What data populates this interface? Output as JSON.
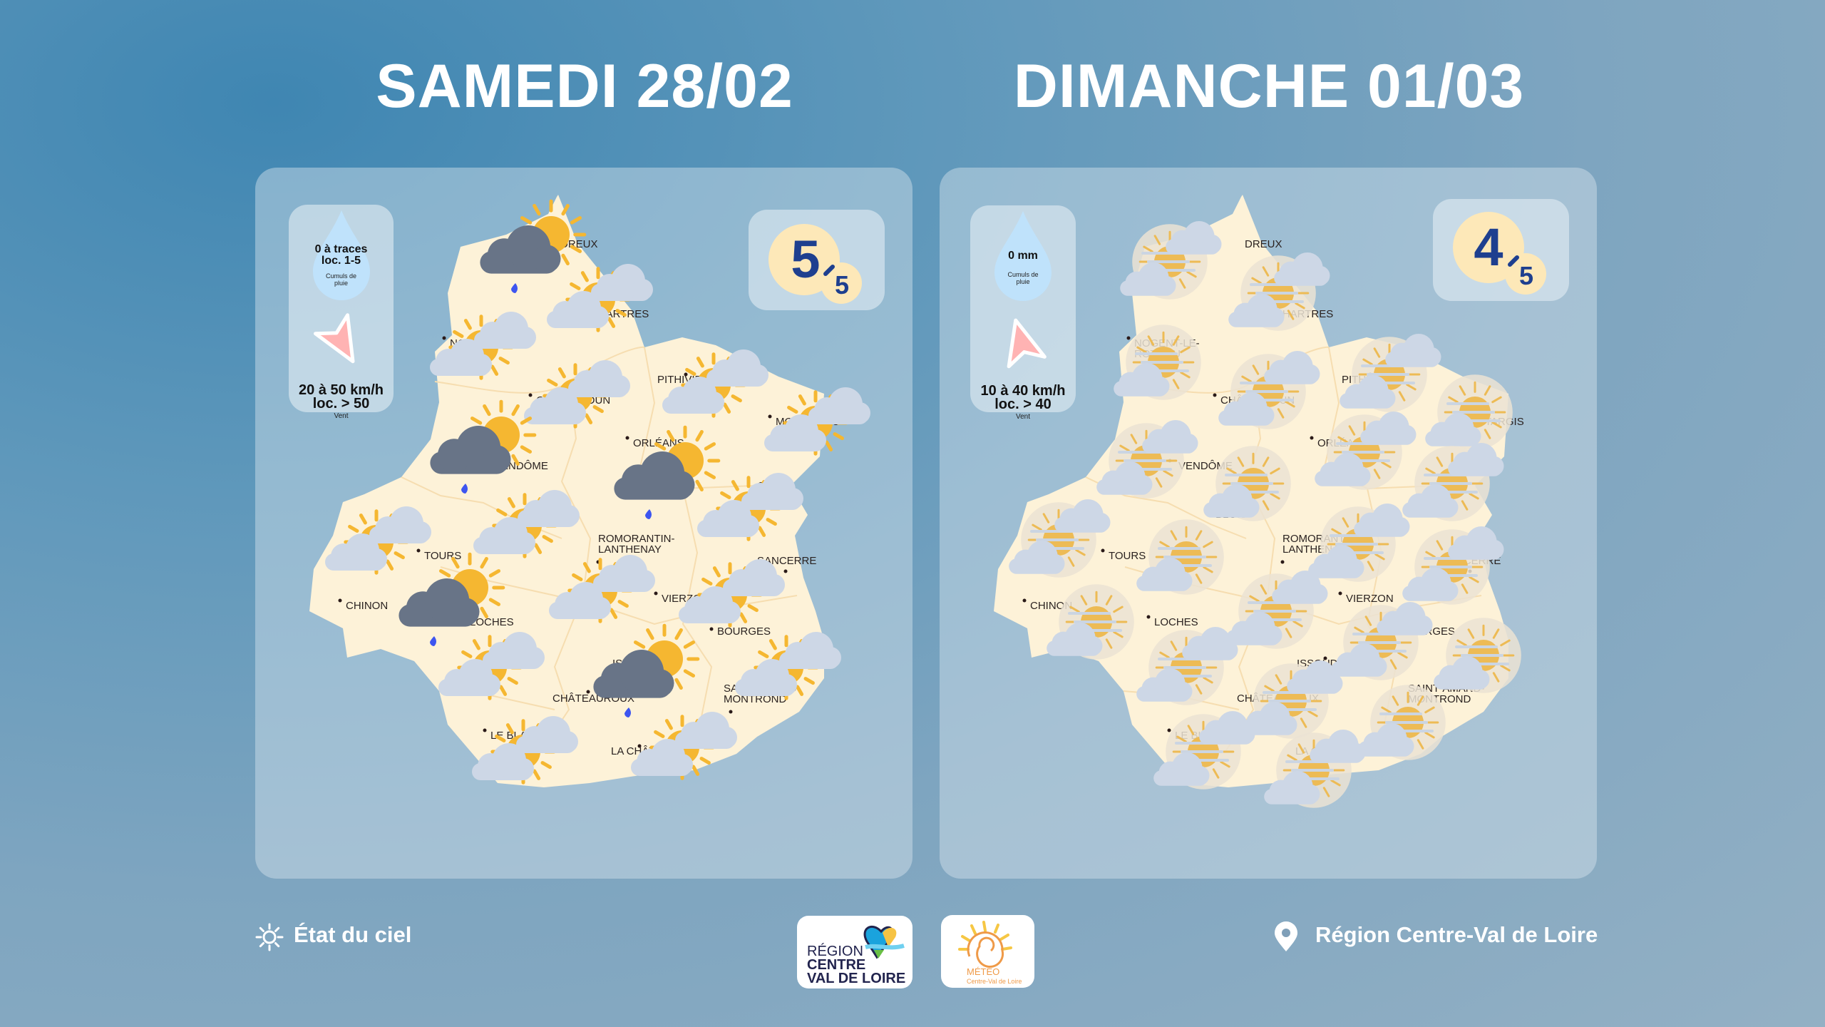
{
  "days": [
    {
      "title": "SAMEDI 28/02",
      "rain": {
        "line1": "0 à traces",
        "line2": "loc. 1-5",
        "label": "Cumuls de pluie"
      },
      "wind": {
        "line1": "20 à 50 km/h",
        "line2": "loc. > 50",
        "label": "Vent",
        "arrow_icon": "arrow-southeast-icon"
      },
      "rating": {
        "value": "5",
        "max": "5"
      },
      "sky_icons": [
        "rain",
        "partly-cloudy",
        "partly-cloudy",
        "partly-cloudy",
        "partly-cloudy",
        "partly-cloudy",
        "rain",
        "rain",
        "partly-cloudy",
        "partly-cloudy",
        "partly-cloudy",
        "rain",
        "partly-cloudy",
        "partly-cloudy",
        "partly-cloudy",
        "rain",
        "partly-cloudy",
        "partly-cloudy",
        "partly-cloudy"
      ]
    },
    {
      "title": "DIMANCHE 01/03",
      "rain": {
        "line1": "0 mm",
        "line2": "",
        "label": "Cumuls de pluie"
      },
      "wind": {
        "line1": "10 à 40 km/h",
        "line2": "loc. > 40",
        "label": "Vent",
        "arrow_icon": "arrow-north-icon"
      },
      "rating": {
        "value": "4",
        "max": "5"
      },
      "sky_icons": [
        "hazy-partly-cloudy",
        "hazy-partly-cloudy",
        "hazy-partly-cloudy",
        "hazy-partly-cloudy",
        "hazy-partly-cloudy",
        "hazy-partly-cloudy",
        "hazy-partly-cloudy",
        "hazy-partly-cloudy",
        "hazy-partly-cloudy",
        "hazy-partly-cloudy",
        "hazy-partly-cloudy",
        "hazy-partly-cloudy",
        "hazy-partly-cloudy",
        "hazy-partly-cloudy",
        "hazy-partly-cloudy",
        "hazy-partly-cloudy",
        "hazy-partly-cloudy",
        "hazy-partly-cloudy",
        "hazy-partly-cloudy",
        "hazy-partly-cloudy",
        "hazy-partly-cloudy",
        "hazy-partly-cloudy",
        "hazy-partly-cloudy"
      ]
    }
  ],
  "cities": [
    "DREUX",
    "CHARTRES",
    "NOGENT-LE-ROTROU",
    "CHÂTEAUDUN",
    "PITHIVIERS",
    "MONTARGIS",
    "ORLÉANS",
    "VENDÔME",
    "GIEN",
    "BLOIS",
    "TOURS",
    "ROMORANTIN-LANTHENAY",
    "SANCERRE",
    "CHINON",
    "VIERZON",
    "LOCHES",
    "BOURGES",
    "ISSOUDUN",
    "CHÂTEAUROUX",
    "SAINT-AMAND-MONTROND",
    "LE BLANC",
    "LA CHÂTRE"
  ],
  "colors": {
    "map": "#fdf2d8",
    "sun": "#f5b731",
    "cloud_light": "#cdd7e6",
    "cloud_dark": "#687487",
    "rain_drop": "#3d55f0",
    "rating_text": "#1e3f8f",
    "rating_bg": "#fde8b8"
  },
  "footer": {
    "legend_icon": "sun-icon",
    "legend_label": "État du ciel",
    "region_logo": {
      "line1": "RÉGION",
      "line2": "CENTRE",
      "line3": "VAL DE LOIRE"
    },
    "meteo_logo": {
      "line1": "MÉTÉO",
      "line2": "Centre-Val de Loire"
    },
    "location_icon": "map-pin-icon",
    "location_label": "Région Centre-Val de Loire"
  }
}
